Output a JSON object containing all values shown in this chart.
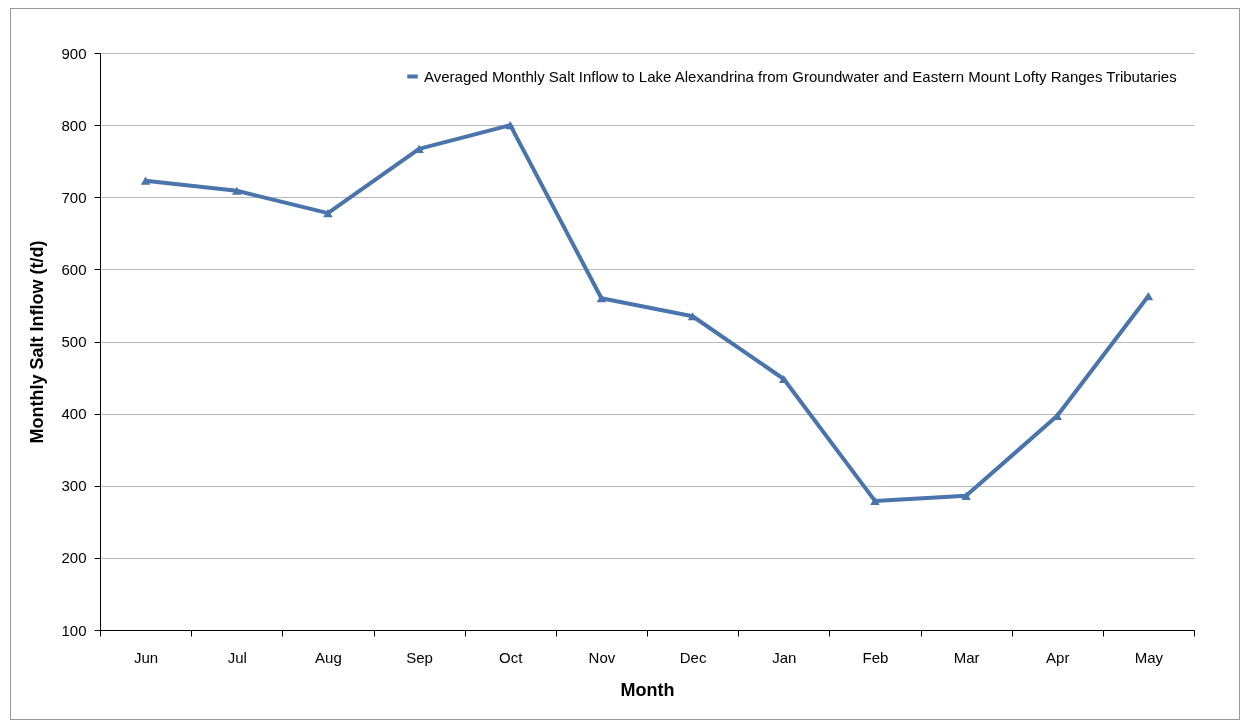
{
  "chart_data": {
    "type": "line",
    "xlabel": "Month",
    "ylabel": "Monthly Salt Inflow (t/d)",
    "categories": [
      "Jun",
      "Jul",
      "Aug",
      "Sep",
      "Oct",
      "Nov",
      "Dec",
      "Jan",
      "Feb",
      "Mar",
      "Apr",
      "May"
    ],
    "series": [
      {
        "name": "Averaged Monthly Salt Inflow to Lake Alexandrina from Groundwater and Eastern Mount Lofty Ranges Tributaries",
        "color": "#4a74ab",
        "values": [
          723,
          709,
          678,
          767,
          800,
          560,
          535,
          448,
          279,
          286,
          397,
          563
        ]
      }
    ],
    "ylim": [
      100,
      900
    ],
    "yticks": [
      100,
      200,
      300,
      400,
      500,
      600,
      700,
      800,
      900
    ],
    "grid": "y",
    "legend": "top right",
    "marker": "triangle",
    "line_style": "solid"
  }
}
